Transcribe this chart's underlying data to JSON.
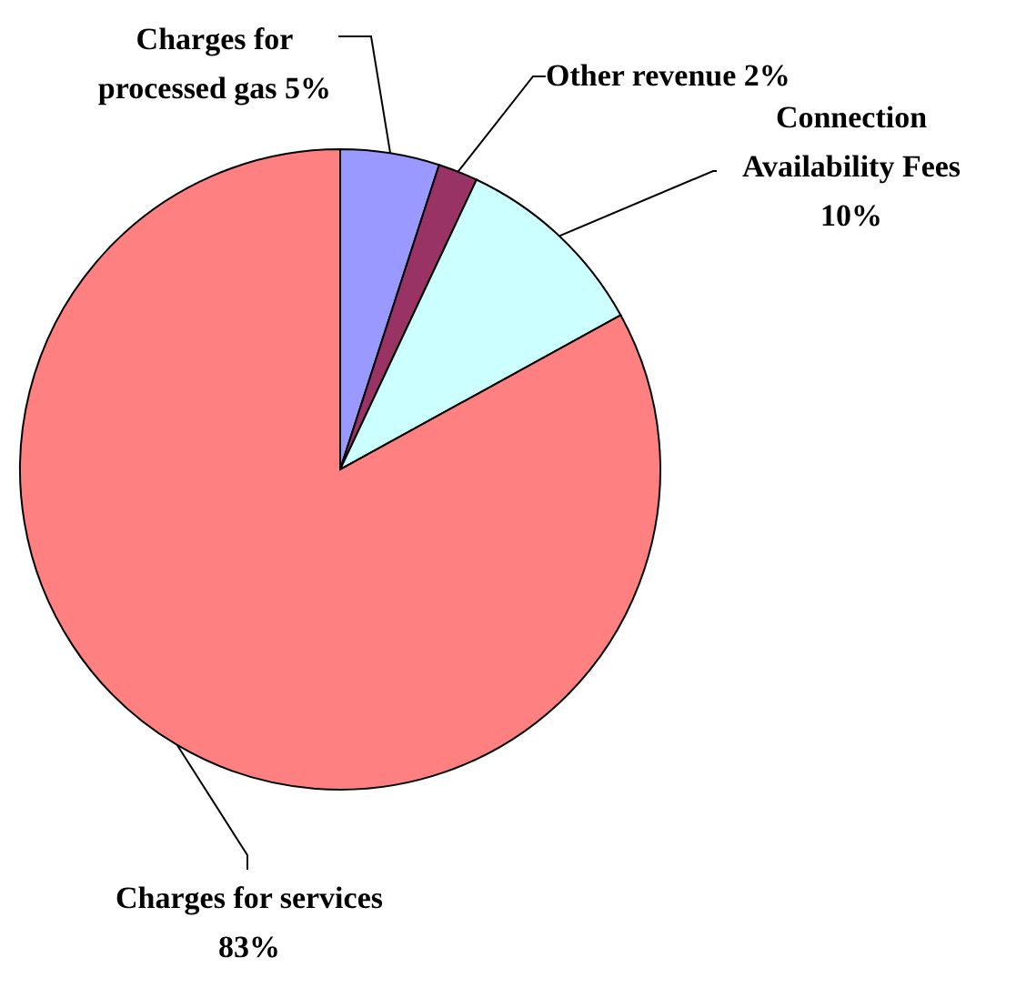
{
  "chart_data": {
    "type": "pie",
    "categories": [
      "Charges for processed gas",
      "Other revenue",
      "Connection Availability Fees",
      "Charges for services"
    ],
    "values": [
      5,
      2,
      10,
      83
    ],
    "value_labels": [
      "5%",
      "2%",
      "10%",
      "83%"
    ],
    "colors": [
      "#9999ff",
      "#993366",
      "#ccffff",
      "#ff8080"
    ],
    "legend": false
  }
}
